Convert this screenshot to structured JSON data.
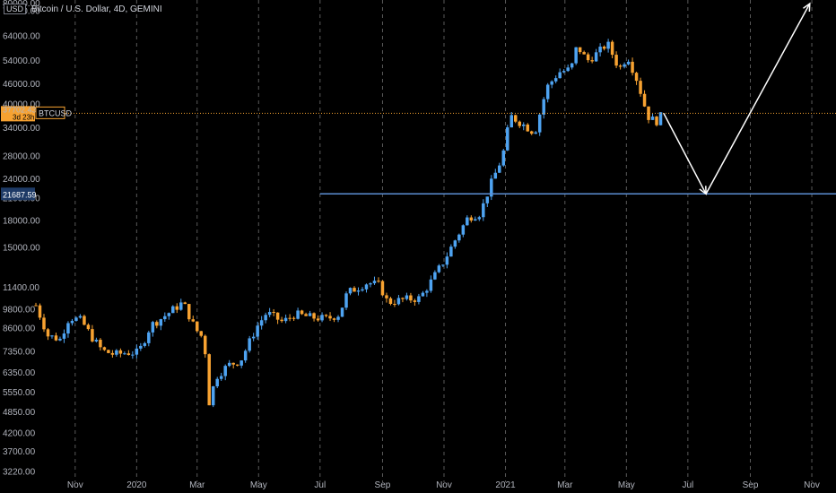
{
  "header": {
    "currency_badge": "USD",
    "title": "Bitcoin / U.S. Dollar, 4D, GEMINI"
  },
  "price_labels": {
    "current_price": "37702.43",
    "countdown": "3d 23h",
    "symbol": "BTCUSD",
    "support_level": "21687.59"
  },
  "colors": {
    "background": "#000000",
    "up": "#4ea3f1",
    "down": "#f7a231",
    "support_line": "#5b8fd4",
    "price_line": "#f7a231",
    "grid": "#5a5a5a",
    "arrow": "#ffffff"
  },
  "chart_data": {
    "type": "candlestick",
    "title": "Bitcoin / U.S. Dollar, 4D, GEMINI",
    "y_scale": "log",
    "y_ticks": [
      80000,
      76000,
      64000,
      54000,
      46000,
      40000,
      34000,
      28000,
      24000,
      21000,
      18000,
      15000,
      11400,
      9800,
      8600,
      7350,
      6350,
      5550,
      4850,
      4200,
      3700,
      3220
    ],
    "x_ticks": [
      "Nov",
      "2020",
      "Mar",
      "May",
      "Jul",
      "Sep",
      "Nov",
      "2021",
      "Mar",
      "May",
      "Jul",
      "Sep",
      "Nov"
    ],
    "grid": "vertical dashed",
    "close_path": [
      [
        "2019-09-23",
        10100
      ],
      [
        "2019-10-05",
        8200
      ],
      [
        "2019-10-17",
        8000
      ],
      [
        "2019-10-26",
        9300
      ],
      [
        "2019-11-07",
        9100
      ],
      [
        "2019-11-19",
        8000
      ],
      [
        "2019-11-28",
        7400
      ],
      [
        "2019-12-10",
        7200
      ],
      [
        "2019-12-22",
        7300
      ],
      [
        "2020-01-03",
        7300
      ],
      [
        "2020-01-15",
        8800
      ],
      [
        "2020-01-27",
        9300
      ],
      [
        "2020-02-08",
        9900
      ],
      [
        "2020-02-16",
        10300
      ],
      [
        "2020-02-28",
        8600
      ],
      [
        "2020-03-08",
        8000
      ],
      [
        "2020-03-13",
        5200
      ],
      [
        "2020-03-20",
        6200
      ],
      [
        "2020-04-01",
        6700
      ],
      [
        "2020-04-13",
        6900
      ],
      [
        "2020-04-29",
        8700
      ],
      [
        "2020-05-09",
        9600
      ],
      [
        "2020-05-25",
        9000
      ],
      [
        "2020-06-06",
        9500
      ],
      [
        "2020-06-22",
        9300
      ],
      [
        "2020-07-08",
        9200
      ],
      [
        "2020-07-20",
        9500
      ],
      [
        "2020-07-28",
        11000
      ],
      [
        "2020-08-17",
        11800
      ],
      [
        "2020-08-29",
        11600
      ],
      [
        "2020-09-06",
        10300
      ],
      [
        "2020-09-22",
        10500
      ],
      [
        "2020-10-08",
        10600
      ],
      [
        "2020-10-20",
        12000
      ],
      [
        "2020-11-01",
        13700
      ],
      [
        "2020-11-13",
        16000
      ],
      [
        "2020-11-25",
        18500
      ],
      [
        "2020-12-07",
        19000
      ],
      [
        "2020-12-17",
        23000
      ],
      [
        "2020-12-29",
        28000
      ],
      [
        "2021-01-06",
        37000
      ],
      [
        "2021-01-18",
        35000
      ],
      [
        "2021-01-30",
        33000
      ],
      [
        "2021-02-11",
        45000
      ],
      [
        "2021-02-23",
        50000
      ],
      [
        "2021-03-07",
        51000
      ],
      [
        "2021-03-13",
        60000
      ],
      [
        "2021-03-23",
        54000
      ],
      [
        "2021-04-04",
        57500
      ],
      [
        "2021-04-12",
        61000
      ],
      [
        "2021-04-24",
        51000
      ],
      [
        "2021-05-02",
        56000
      ],
      [
        "2021-05-12",
        47000
      ],
      [
        "2021-05-22",
        37000
      ],
      [
        "2021-05-30",
        35500
      ],
      [
        "2021-06-07",
        37702
      ]
    ],
    "projection_path": [
      [
        "2021-06-07",
        37702
      ],
      [
        "2021-07-19",
        21687.59
      ],
      [
        "2021-10-30",
        80000
      ]
    ],
    "horizontal_levels": [
      {
        "price": 21687.59,
        "from": "2020-07-01"
      },
      {
        "price": 37702.43,
        "from": "2019-09-23"
      }
    ],
    "x_range": [
      "2019-09-23",
      "2021-11-25"
    ],
    "ylim": [
      3000,
      82000
    ]
  }
}
